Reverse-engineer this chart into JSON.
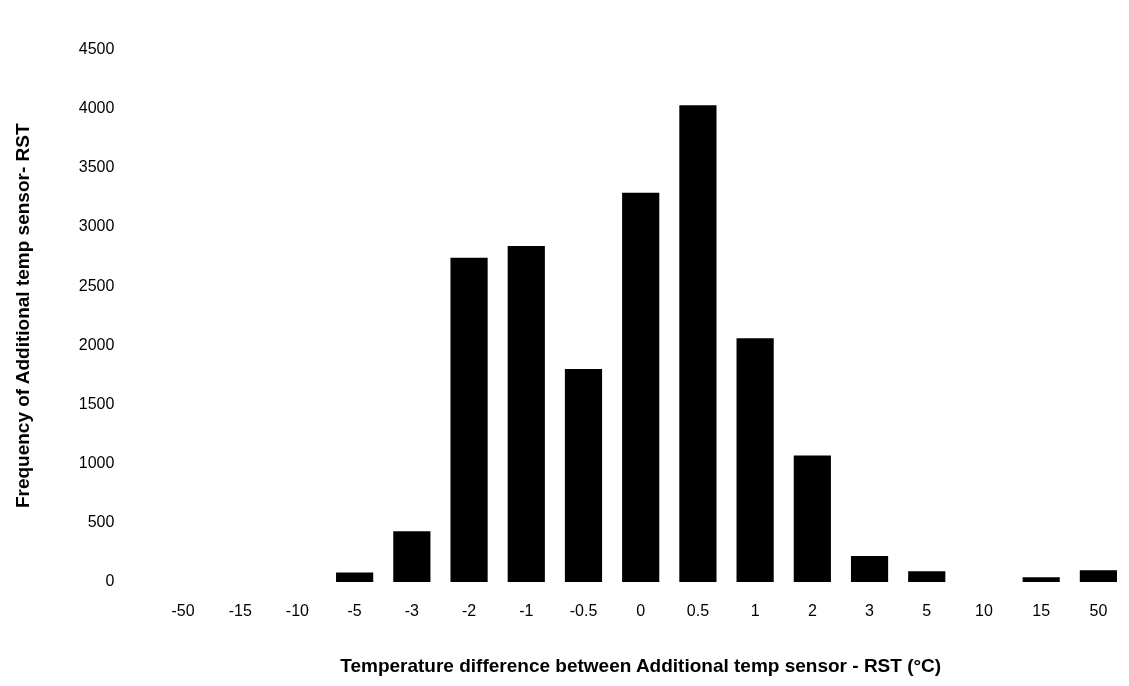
{
  "chart_data": {
    "type": "bar",
    "xlabel": "Temperature difference between Additional temp sensor - RST (°C)",
    "ylabel": "Frequency of Additional temp sensor- RST",
    "categories": [
      "-50",
      "-15",
      "-10",
      "-5",
      "-3",
      "-2",
      "-1",
      "-0.5",
      "0",
      "0.5",
      "1",
      "2",
      "3",
      "5",
      "10",
      "15",
      "50"
    ],
    "values": [
      0,
      0,
      0,
      80,
      430,
      2740,
      2840,
      1800,
      3290,
      4030,
      2060,
      1070,
      220,
      90,
      0,
      40,
      100
    ],
    "color": "#000000",
    "ylim": [
      0,
      4500
    ],
    "yticks": [
      0,
      500,
      1000,
      1500,
      2000,
      2500,
      3000,
      3500,
      4000,
      4500
    ],
    "grid": false,
    "legend": false
  }
}
